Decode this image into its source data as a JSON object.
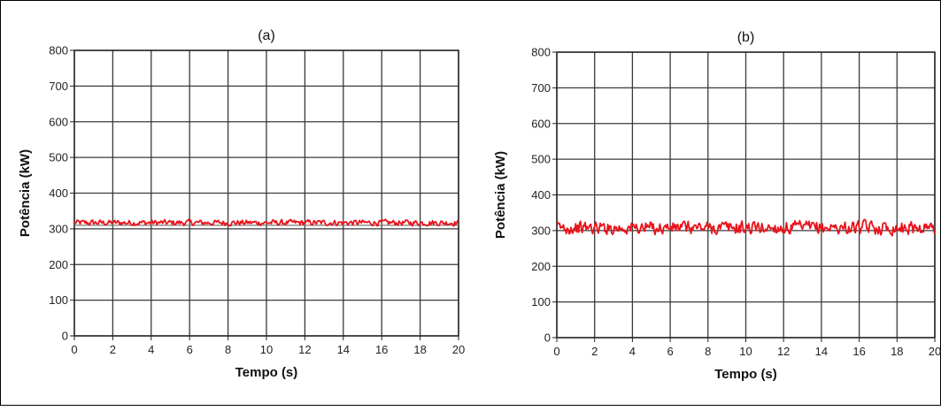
{
  "chart_data": [
    {
      "type": "line",
      "title": "(a)",
      "xlabel": "Tempo (s)",
      "ylabel": "Potência (kW)",
      "xlim": [
        0,
        20
      ],
      "ylim": [
        0,
        800
      ],
      "x_ticks": [
        0,
        2,
        4,
        6,
        8,
        10,
        12,
        14,
        16,
        18,
        20
      ],
      "y_ticks": [
        0,
        100,
        200,
        300,
        400,
        500,
        600,
        700,
        800
      ],
      "grid": true,
      "legend": "none",
      "series_color": "#e8141c",
      "mean": 317,
      "spread": 7,
      "baseline": 310,
      "baseline_color": "#7a7a7a"
    },
    {
      "type": "line",
      "title": "(b)",
      "xlabel": "Tempo (s)",
      "ylabel": "Potência (kW)",
      "xlim": [
        0,
        20
      ],
      "ylim": [
        0,
        800
      ],
      "x_ticks": [
        0,
        2,
        4,
        6,
        8,
        10,
        12,
        14,
        16,
        18,
        20
      ],
      "y_ticks": [
        0,
        100,
        200,
        300,
        400,
        500,
        600,
        700,
        800
      ],
      "grid": true,
      "legend": "none",
      "series_color": "#e8141c",
      "mean": 308,
      "spread": 16
    }
  ]
}
